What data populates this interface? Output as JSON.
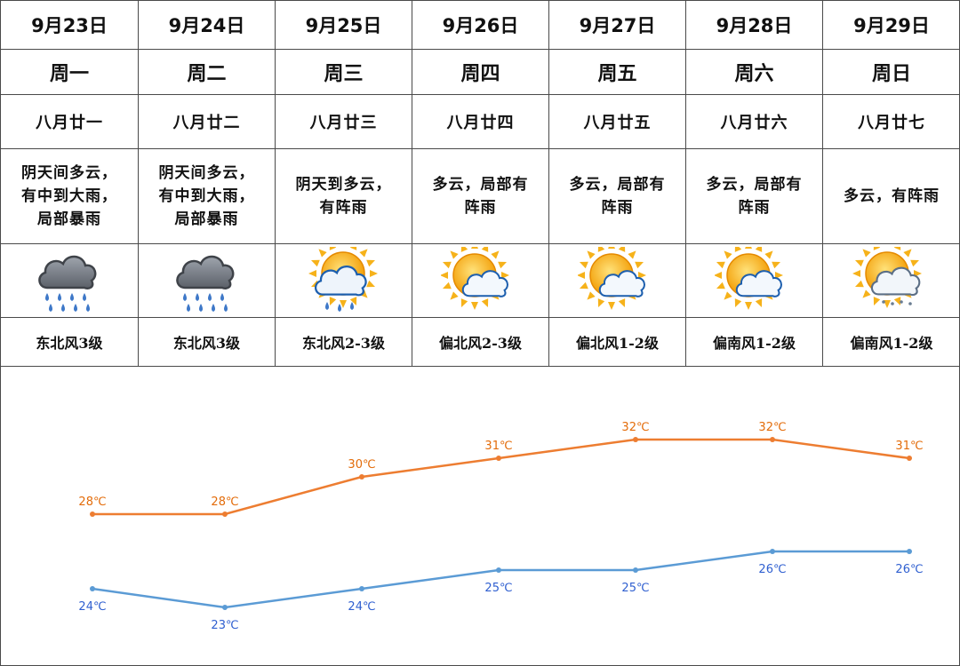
{
  "days": [
    {
      "date": "9月23日",
      "weekday": "周一",
      "lunar": "八月廿一",
      "desc": [
        "阴天间多云，",
        "有中到大雨，",
        "局部暴雨"
      ],
      "icon": "cloud-heavy-rain-icon",
      "wind": "东北风3级"
    },
    {
      "date": "9月24日",
      "weekday": "周二",
      "lunar": "八月廿二",
      "desc": [
        "阴天间多云，",
        "有中到大雨，",
        "局部暴雨"
      ],
      "icon": "cloud-heavy-rain-icon",
      "wind": "东北风3级"
    },
    {
      "date": "9月25日",
      "weekday": "周三",
      "lunar": "八月廿三",
      "desc": [
        "阴天到多云，",
        "有阵雨"
      ],
      "icon": "sun-cloud-rain-icon",
      "wind": "东北风2-3级"
    },
    {
      "date": "9月26日",
      "weekday": "周四",
      "lunar": "八月廿四",
      "desc": [
        "多云，局部有",
        "阵雨"
      ],
      "icon": "sun-cloud-icon",
      "wind": "偏北风2-3级"
    },
    {
      "date": "9月27日",
      "weekday": "周五",
      "lunar": "八月廿五",
      "desc": [
        "多云，局部有",
        "阵雨"
      ],
      "icon": "sun-cloud-icon",
      "wind": "偏北风1-2级"
    },
    {
      "date": "9月28日",
      "weekday": "周六",
      "lunar": "八月廿六",
      "desc": [
        "多云，局部有",
        "阵雨"
      ],
      "icon": "sun-cloud-icon",
      "wind": "偏南风1-2级"
    },
    {
      "date": "9月29日",
      "weekday": "周日",
      "lunar": "八月廿七",
      "desc": [
        "多云，有阵雨"
      ],
      "icon": "sun-cloud-light-rain-icon",
      "wind": "偏南风1-2级"
    }
  ],
  "chart_data": {
    "type": "line",
    "x": [
      "9月23日",
      "9月24日",
      "9月25日",
      "9月26日",
      "9月27日",
      "9月28日",
      "9月29日"
    ],
    "series": [
      {
        "values": [
          28,
          28,
          30,
          31,
          32,
          32,
          31
        ],
        "labels": [
          "28℃",
          "28℃",
          "30℃",
          "31℃",
          "32℃",
          "32℃",
          "31℃"
        ],
        "color": "#ed7d31",
        "label_position": "above"
      },
      {
        "values": [
          24,
          23,
          24,
          25,
          25,
          26,
          26
        ],
        "labels": [
          "24℃",
          "23℃",
          "24℃",
          "25℃",
          "25℃",
          "26℃",
          "26℃"
        ],
        "color": "#5b9bd5",
        "label_position": "below"
      }
    ],
    "ylim": [
      20,
      34
    ],
    "grid": false,
    "title": "",
    "xlabel": "",
    "ylabel": ""
  },
  "colors": {
    "border": "#4a4a4a",
    "high_line": "#ed7d31",
    "low_line": "#5b9bd5",
    "high_label": "#e36c0a",
    "low_label": "#2f5fd0"
  }
}
